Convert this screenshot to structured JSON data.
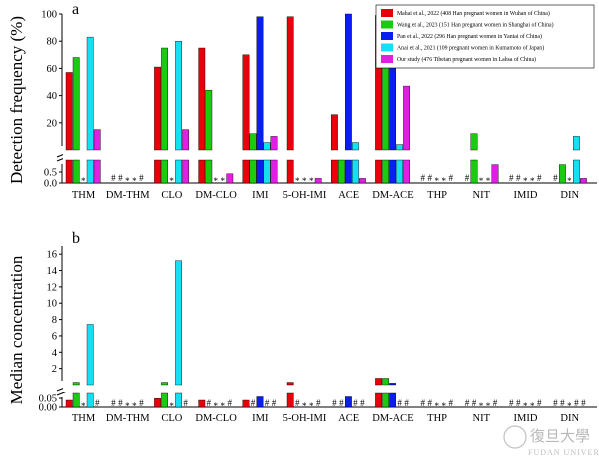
{
  "legend": [
    {
      "label": "Mahai et al., 2022 (408 Han pregnant women in Wuhan of China)",
      "color": "#e8000b"
    },
    {
      "label": "Wang et al., 2023 (151 Han pregnant women in Shanghai of China)",
      "color": "#1acb0f"
    },
    {
      "label": "Pan et al., 2022 (296 Han pregnant women in Yantai of China)",
      "color": "#0a1ef0"
    },
    {
      "label": "Anai et al., 2021 (109 pregnant women in Kumamoto of Japan)",
      "color": "#13e0f5"
    },
    {
      "label": "Our study (476 Tibetan pregnant women in Lahsa of China)",
      "color": "#e21ee6"
    }
  ],
  "watermark": {
    "logo_text": "復旦大學",
    "sub_text": "FUDAN UNIVERSITY"
  },
  "chart_data": [
    {
      "panel_label": "a",
      "type": "bar",
      "ylabel": "Detection frequency (%)",
      "categories": [
        "THM",
        "DM-THM",
        "CLO",
        "DM-CLO",
        "IMI",
        "5-OH-IMI",
        "ACE",
        "DM-ACE",
        "THP",
        "NIT",
        "IMID",
        "DIN"
      ],
      "axis_break": {
        "lower": [
          0,
          1
        ],
        "upper": [
          0,
          100
        ]
      },
      "lower_ticks": [
        "0.0",
        "0.5"
      ],
      "upper_ticks": [
        "20",
        "40",
        "60",
        "80",
        "100"
      ],
      "series": [
        {
          "name": "Mahai et al., 2022 (408 Han pregnant women in Wuhan of China)",
          "values": [
            57,
            null,
            61,
            75,
            70,
            98,
            26,
            99,
            null,
            null,
            null,
            null
          ],
          "marks": [
            "",
            "#",
            "",
            "",
            "",
            "",
            "",
            "",
            "#",
            "#",
            "#",
            "#"
          ]
        },
        {
          "name": "Wang et al., 2023 (151 Han pregnant women in Shanghai of China)",
          "values": [
            68,
            null,
            75,
            44,
            12,
            null,
            1,
            77,
            null,
            12,
            null,
            0.8
          ],
          "marks": [
            "",
            "#",
            "",
            "",
            "",
            "*",
            "",
            "",
            "#",
            "",
            "#",
            ""
          ]
        },
        {
          "name": "Pan et al., 2022 (296 Han pregnant women in Yantai of China)",
          "values": [
            null,
            null,
            null,
            null,
            98,
            null,
            100,
            73,
            null,
            null,
            null,
            null
          ],
          "marks": [
            "*",
            "*",
            "*",
            "*",
            "",
            "*",
            "",
            "",
            "*",
            "*",
            "*",
            "*"
          ]
        },
        {
          "name": "Anai et al., 2021 (109 pregnant women in Kumamoto of Japan)",
          "values": [
            83,
            null,
            80,
            null,
            5.5,
            null,
            5.5,
            4,
            null,
            null,
            null,
            10
          ],
          "marks": [
            "",
            "*",
            "",
            "*",
            "",
            "*",
            "",
            "",
            "*",
            "*",
            "*",
            ""
          ]
        },
        {
          "name": "Our study (476 Tibetan pregnant women in Lahsa of China)",
          "values": [
            15,
            null,
            15,
            0.4,
            10,
            0.2,
            0.2,
            47,
            null,
            0.8,
            null,
            0.2
          ],
          "marks": [
            "",
            "#",
            "",
            "",
            "",
            "",
            "",
            "",
            "#",
            "",
            "#",
            ""
          ]
        }
      ]
    },
    {
      "panel_label": "b",
      "type": "bar",
      "ylabel": "Median concentration",
      "categories": [
        "THM",
        "DM-THM",
        "CLO",
        "DM-CLO",
        "IMI",
        "5-OH-IMI",
        "ACE",
        "DM-ACE",
        "THP",
        "NIT",
        "IMID",
        "DIN"
      ],
      "axis_break": {
        "lower": [
          0,
          0.08
        ],
        "upper": [
          0,
          17
        ]
      },
      "lower_ticks": [
        "0.00",
        "0.05"
      ],
      "upper_ticks": [
        "2",
        "4",
        "6",
        "8",
        "10",
        "12",
        "14",
        "16"
      ],
      "series": [
        {
          "name": "Mahai et al., 2022 (408 Han pregnant women in Wuhan of China)",
          "values": [
            0.04,
            null,
            0.05,
            0.04,
            0.04,
            0.3,
            null,
            0.8,
            null,
            null,
            null,
            null
          ],
          "marks": [
            "",
            "#",
            "",
            "",
            "",
            "",
            "#",
            "",
            "#",
            "#",
            "#",
            "#"
          ]
        },
        {
          "name": "Wang et al., 2023 (151 Han pregnant women in Shanghai of China)",
          "values": [
            0.3,
            null,
            0.3,
            null,
            null,
            null,
            null,
            0.8,
            null,
            null,
            null,
            null
          ],
          "marks": [
            "",
            "#",
            "",
            "#",
            "#",
            "#",
            "#",
            "",
            "#",
            "#",
            "#",
            "#"
          ]
        },
        {
          "name": "Pan et al., 2022 (296 Han pregnant women in Yantai of China)",
          "values": [
            null,
            null,
            null,
            null,
            0.06,
            null,
            0.06,
            0.2,
            null,
            null,
            null,
            null
          ],
          "marks": [
            "*",
            "*",
            "*",
            "*",
            "",
            "*",
            "",
            "",
            "*",
            "*",
            "*",
            "*"
          ]
        },
        {
          "name": "Anai et al., 2021 (109 pregnant women in Kumamoto of Japan)",
          "values": [
            7.4,
            null,
            15.2,
            null,
            null,
            null,
            null,
            null,
            null,
            null,
            null,
            null
          ],
          "marks": [
            "",
            "*",
            "",
            "*",
            "#",
            "*",
            "#",
            "#",
            "*",
            "*",
            "*",
            "#"
          ]
        },
        {
          "name": "Our study (476 Tibetan pregnant women in Lahsa of China)",
          "values": [
            null,
            null,
            null,
            null,
            null,
            null,
            null,
            null,
            null,
            null,
            null,
            null
          ],
          "marks": [
            "#",
            "#",
            "#",
            "#",
            "#",
            "#",
            "#",
            "#",
            "#",
            "#",
            "#",
            "#"
          ]
        }
      ]
    }
  ]
}
